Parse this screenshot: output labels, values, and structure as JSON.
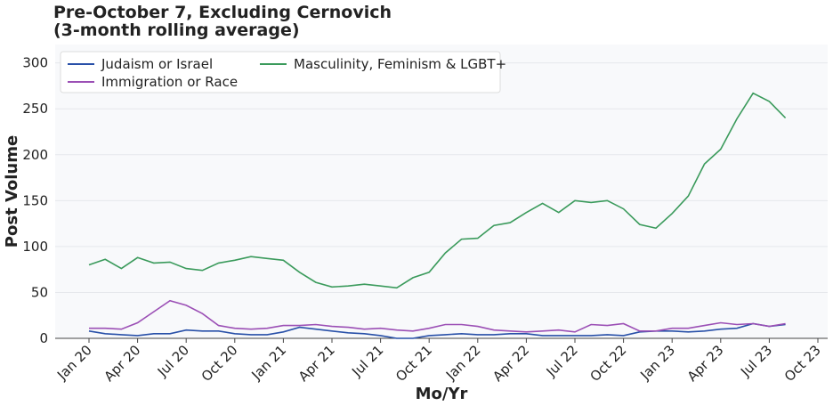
{
  "chart_data": {
    "type": "line",
    "title": "Pre-October 7, Excluding Cernovich",
    "subtitle": "(3-month rolling average)",
    "x_label": "Mo/Yr",
    "y_label": "Post Volume",
    "categories": [
      "Jan 20",
      null,
      null,
      "Apr 20",
      null,
      null,
      "Jul 20",
      null,
      null,
      "Oct 20",
      null,
      null,
      "Jan 21",
      null,
      null,
      "Apr 21",
      null,
      null,
      "Jul 21",
      null,
      null,
      "Oct 21",
      null,
      null,
      "Jan 22",
      null,
      null,
      "Apr 22",
      null,
      null,
      "Jul 22",
      null,
      null,
      "Oct 22",
      null,
      null,
      "Jan 23",
      null,
      null,
      "Apr 23",
      null,
      null,
      "Jul 23",
      null,
      null,
      "Oct 23"
    ],
    "ylim": [
      0,
      320
    ],
    "yticks": [
      0,
      50,
      100,
      150,
      200,
      250,
      300
    ],
    "grid": true,
    "legend": "upper left",
    "series": [
      {
        "name": "Judaism or Israel",
        "color": "#2850a8",
        "values": [
          8,
          5,
          4,
          3,
          5,
          5,
          9,
          8,
          8,
          5,
          4,
          4,
          7,
          12,
          10,
          8,
          6,
          5,
          3,
          0,
          0,
          3,
          4,
          5,
          4,
          4,
          5,
          5,
          3,
          3,
          3,
          3,
          4,
          3,
          7,
          8,
          8,
          7,
          8,
          10,
          11,
          16,
          13,
          15,
          null,
          null
        ]
      },
      {
        "name": "Immigration or Race",
        "color": "#9b4fb5",
        "values": [
          11,
          11,
          10,
          17,
          29,
          41,
          36,
          27,
          14,
          11,
          10,
          11,
          14,
          14,
          15,
          13,
          12,
          10,
          11,
          9,
          8,
          11,
          15,
          15,
          13,
          9,
          8,
          7,
          8,
          9,
          7,
          15,
          14,
          16,
          8,
          8,
          11,
          11,
          14,
          17,
          15,
          16,
          13,
          16,
          null,
          null
        ]
      },
      {
        "name": "Masculinity, Feminism & LGBT+",
        "color": "#3a9a5b",
        "values": [
          80,
          86,
          76,
          88,
          82,
          83,
          76,
          74,
          82,
          85,
          89,
          87,
          85,
          72,
          61,
          56,
          57,
          59,
          57,
          55,
          66,
          72,
          93,
          108,
          109,
          123,
          126,
          137,
          147,
          137,
          150,
          148,
          150,
          141,
          124,
          120,
          136,
          155,
          190,
          206,
          239,
          267,
          258,
          240,
          null,
          null
        ]
      }
    ]
  }
}
